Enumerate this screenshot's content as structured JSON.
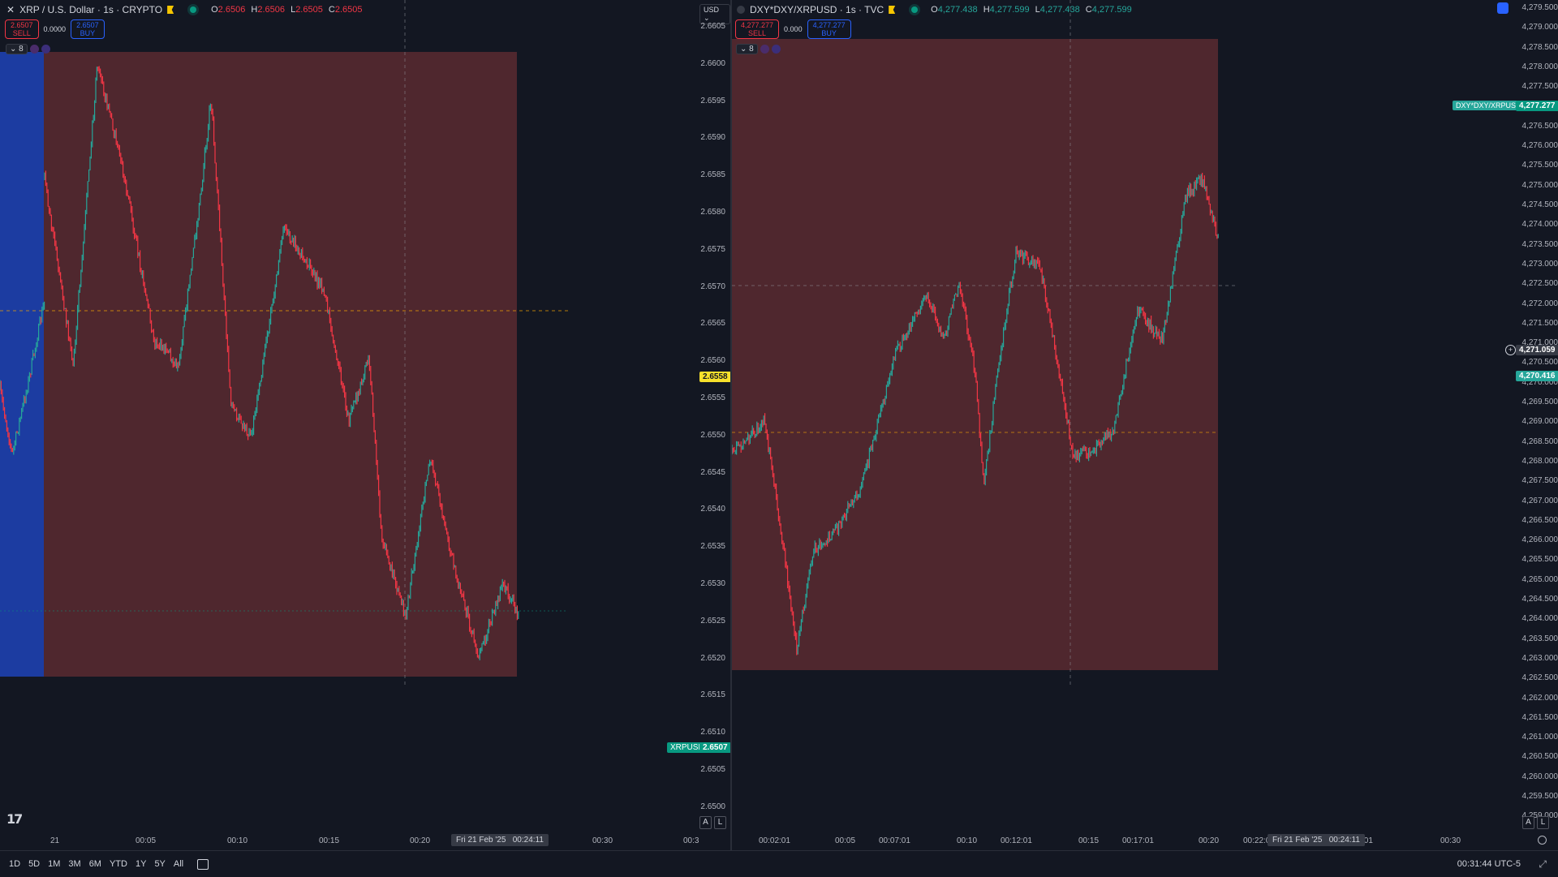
{
  "left": {
    "symbol": "XRP / U.S. Dollar · 1s · CRYPTO",
    "ohlc": {
      "o": "2.6506",
      "h": "2.6506",
      "l": "2.6505",
      "c": "2.6505"
    },
    "sell": {
      "price": "2.6507",
      "label": "SELL"
    },
    "buy": {
      "price": "2.6507",
      "label": "BUY"
    },
    "spread": "0.0000",
    "indicators_count": "8",
    "currency": "USD",
    "price_ticks": [
      "2.6605",
      "2.6600",
      "2.6595",
      "2.6590",
      "2.6585",
      "2.6580",
      "2.6575",
      "2.6570",
      "2.6565",
      "2.6560",
      "2.6555",
      "2.6550",
      "2.6545",
      "2.6540",
      "2.6535",
      "2.6530",
      "2.6525",
      "2.6520",
      "2.6515",
      "2.6510",
      "2.6505",
      "2.6500"
    ],
    "crosshair_price": "2.6558",
    "last_price": "2.6507",
    "last_symbol": "XRPUSD",
    "time_ticks": [
      "21",
      "00:05",
      "00:10",
      "00:15",
      "00:20",
      "00:30",
      "00:3"
    ],
    "crosshair_date": "Fri 21 Feb '25",
    "crosshair_time": "00:24:11",
    "axis_a": "A",
    "axis_l": "L",
    "logo": "17",
    "colors": {
      "zone": "#5a2a30",
      "up": "#26a69a",
      "down": "#f23645",
      "blue_zone": "#1e40af"
    }
  },
  "right": {
    "symbol": "DXY*DXY/XRPUSD · 1s · TVC",
    "ohlc": {
      "o": "4,277.438",
      "h": "4,277.599",
      "l": "4,277.438",
      "c": "4,277.599"
    },
    "sell": {
      "price": "4,277.277",
      "label": "SELL"
    },
    "buy": {
      "price": "4,277.277",
      "label": "BUY"
    },
    "spread": "0.000",
    "indicators_count": "8",
    "price_ticks": [
      "4,279.500",
      "4,279.000",
      "4,278.500",
      "4,278.000",
      "4,277.500",
      "4,277.000",
      "4,276.500",
      "4,276.000",
      "4,275.500",
      "4,275.000",
      "4,274.500",
      "4,274.000",
      "4,273.500",
      "4,273.000",
      "4,272.500",
      "4,272.000",
      "4,271.500",
      "4,271.000",
      "4,270.500",
      "4,270.000",
      "4,269.500",
      "4,269.000",
      "4,268.500",
      "4,268.000",
      "4,267.500",
      "4,267.000",
      "4,266.500",
      "4,266.000",
      "4,265.500",
      "4,265.000",
      "4,264.500",
      "4,264.000",
      "4,263.500",
      "4,263.000",
      "4,262.500",
      "4,262.000",
      "4,261.500",
      "4,261.000",
      "4,260.500",
      "4,260.000",
      "4,259.500",
      "4,259.000"
    ],
    "crosshair_price": "4,271.059",
    "green_price": "4,270.416",
    "last_price": "4,277.277",
    "last_symbol": "DXY*DXY/XRPUSD",
    "time_ticks": [
      "00:02:01",
      "00:05",
      "00:07:01",
      "00:10",
      "00:12:01",
      "00:15",
      "00:17:01",
      "00:20",
      "00:22:0",
      "00:27:01",
      "00:30"
    ],
    "crosshair_date": "Fri 21 Feb '25",
    "crosshair_time": "00:24:11",
    "axis_a": "A",
    "axis_l": "L"
  },
  "bottom": {
    "ranges": [
      "1D",
      "5D",
      "1M",
      "3M",
      "6M",
      "YTD",
      "1Y",
      "5Y",
      "All"
    ],
    "clock": "00:31:44 UTC-5"
  }
}
